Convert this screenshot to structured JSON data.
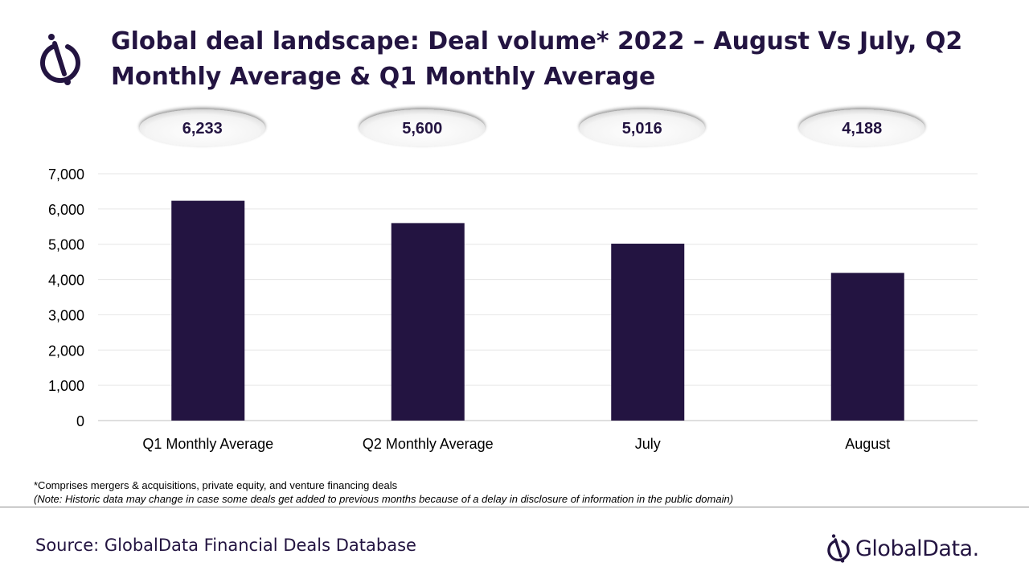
{
  "header": {
    "title_line1": "Global deal landscape: Deal volume* 2022 – August Vs July, Q2",
    "title_line2": "Monthly Average & Q1 Monthly Average"
  },
  "chart_data": {
    "type": "bar",
    "categories": [
      "Q1 Monthly Average",
      "Q2 Monthly Average",
      "July",
      "August"
    ],
    "values": [
      6233,
      5600,
      5016,
      4188
    ],
    "value_labels": [
      "6,233",
      "5,600",
      "5,016",
      "4,188"
    ],
    "ylim": [
      0,
      7000
    ],
    "yticks": [
      0,
      1000,
      2000,
      3000,
      4000,
      5000,
      6000,
      7000
    ],
    "ytick_labels": [
      "0",
      "1,000",
      "2,000",
      "3,000",
      "4,000",
      "5,000",
      "6,000",
      "7,000"
    ],
    "xlabel": "",
    "ylabel": "",
    "grid": true,
    "bar_color": "#231441"
  },
  "footnotes": {
    "line1": "*Comprises mergers & acquisitions, private equity, and venture financing deals",
    "line2": "(Note: Historic data may change in case some deals get added to previous months because of a delay in disclosure of information in the public domain)"
  },
  "footer": {
    "source": "Source: GlobalData Financial Deals Database",
    "brand": "GlobalData."
  },
  "icons": {
    "logo": "globaldata-logo-icon"
  },
  "colors": {
    "primary": "#231441"
  }
}
